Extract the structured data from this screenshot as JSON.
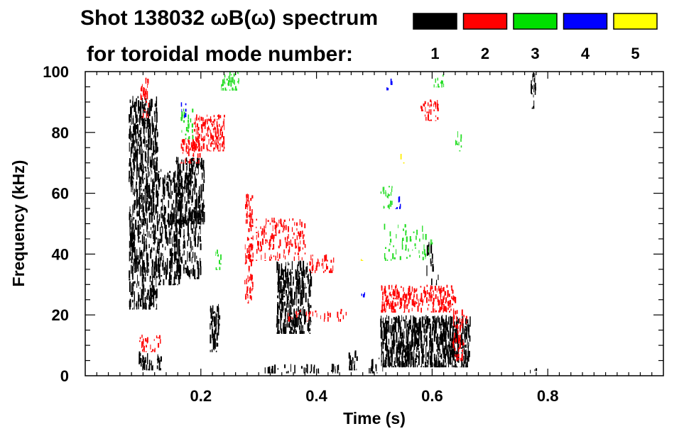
{
  "chart_data": {
    "type": "heatmap",
    "title_line1": "Shot 138032 ωB(ω) spectrum",
    "title_line2": "for toroidal mode number:",
    "xlabel": "Time (s)",
    "ylabel": "Frequency (kHz)",
    "xlim": [
      0.0,
      1.0
    ],
    "ylim": [
      0,
      100
    ],
    "x_ticks": [
      0.2,
      0.4,
      0.6,
      0.8
    ],
    "y_ticks": [
      0,
      20,
      40,
      60,
      80,
      100
    ],
    "grid": false,
    "legend_position": "top-right",
    "legend": [
      {
        "label": "1",
        "color": "#000000"
      },
      {
        "label": "2",
        "color": "#ff0000"
      },
      {
        "label": "3",
        "color": "#00e000"
      },
      {
        "label": "4",
        "color": "#0000ff"
      },
      {
        "label": "5",
        "color": "#ffff00"
      }
    ],
    "mode_colors": {
      "1": "#000000",
      "2": "#ff0000",
      "3": "#22dd22",
      "4": "#0000ff",
      "5": "#ffee00"
    },
    "regions": [
      {
        "mode": 1,
        "t0": 0.075,
        "t1": 0.125,
        "f0": 22,
        "f1": 92,
        "density": 0.5
      },
      {
        "mode": 1,
        "t0": 0.09,
        "t1": 0.13,
        "f0": 2,
        "f1": 8,
        "density": 0.4
      },
      {
        "mode": 1,
        "t0": 0.125,
        "t1": 0.165,
        "f0": 30,
        "f1": 68,
        "density": 0.35
      },
      {
        "mode": 1,
        "t0": 0.155,
        "t1": 0.205,
        "f0": 50,
        "f1": 72,
        "density": 0.6
      },
      {
        "mode": 1,
        "t0": 0.145,
        "t1": 0.2,
        "f0": 32,
        "f1": 55,
        "density": 0.3
      },
      {
        "mode": 1,
        "t0": 0.215,
        "t1": 0.232,
        "f0": 8,
        "f1": 24,
        "density": 0.5
      },
      {
        "mode": 1,
        "t0": 0.33,
        "t1": 0.39,
        "f0": 14,
        "f1": 38,
        "density": 0.55
      },
      {
        "mode": 1,
        "t0": 0.31,
        "t1": 0.44,
        "f0": 1,
        "f1": 4,
        "density": 0.25
      },
      {
        "mode": 1,
        "t0": 0.455,
        "t1": 0.47,
        "f0": 2,
        "f1": 10,
        "density": 0.4
      },
      {
        "mode": 1,
        "t0": 0.49,
        "t1": 0.52,
        "f0": 1,
        "f1": 6,
        "density": 0.3
      },
      {
        "mode": 1,
        "t0": 0.51,
        "t1": 0.665,
        "f0": 3,
        "f1": 20,
        "density": 0.65
      },
      {
        "mode": 1,
        "t0": 0.59,
        "t1": 0.61,
        "f0": 30,
        "f1": 45,
        "density": 0.15
      },
      {
        "mode": 1,
        "t0": 0.77,
        "t1": 0.778,
        "f0": 88,
        "f1": 100,
        "density": 0.5
      },
      {
        "mode": 1,
        "t0": 0.765,
        "t1": 0.78,
        "f0": 1,
        "f1": 3,
        "density": 0.3
      },
      {
        "mode": 2,
        "t0": 0.095,
        "t1": 0.11,
        "f0": 85,
        "f1": 98,
        "density": 0.4
      },
      {
        "mode": 2,
        "t0": 0.09,
        "t1": 0.13,
        "f0": 8,
        "f1": 14,
        "density": 0.3
      },
      {
        "mode": 2,
        "t0": 0.185,
        "t1": 0.24,
        "f0": 74,
        "f1": 86,
        "density": 0.6
      },
      {
        "mode": 2,
        "t0": 0.165,
        "t1": 0.2,
        "f0": 70,
        "f1": 78,
        "density": 0.4
      },
      {
        "mode": 2,
        "t0": 0.275,
        "t1": 0.29,
        "f0": 24,
        "f1": 60,
        "density": 0.45
      },
      {
        "mode": 2,
        "t0": 0.295,
        "t1": 0.38,
        "f0": 38,
        "f1": 52,
        "density": 0.3
      },
      {
        "mode": 2,
        "t0": 0.38,
        "t1": 0.43,
        "f0": 34,
        "f1": 40,
        "density": 0.35
      },
      {
        "mode": 2,
        "t0": 0.35,
        "t1": 0.46,
        "f0": 18,
        "f1": 22,
        "density": 0.2
      },
      {
        "mode": 2,
        "t0": 0.58,
        "t1": 0.61,
        "f0": 84,
        "f1": 91,
        "density": 0.45
      },
      {
        "mode": 2,
        "t0": 0.51,
        "t1": 0.64,
        "f0": 21,
        "f1": 30,
        "density": 0.55
      },
      {
        "mode": 2,
        "t0": 0.635,
        "t1": 0.66,
        "f0": 5,
        "f1": 22,
        "density": 0.35
      },
      {
        "mode": 3,
        "t0": 0.235,
        "t1": 0.265,
        "f0": 94,
        "f1": 100,
        "density": 0.6
      },
      {
        "mode": 3,
        "t0": 0.165,
        "t1": 0.185,
        "f0": 78,
        "f1": 88,
        "density": 0.35
      },
      {
        "mode": 3,
        "t0": 0.51,
        "t1": 0.53,
        "f0": 55,
        "f1": 63,
        "density": 0.35
      },
      {
        "mode": 3,
        "t0": 0.515,
        "t1": 0.6,
        "f0": 38,
        "f1": 50,
        "density": 0.15
      },
      {
        "mode": 3,
        "t0": 0.6,
        "t1": 0.62,
        "f0": 95,
        "f1": 100,
        "density": 0.3
      },
      {
        "mode": 3,
        "t0": 0.64,
        "t1": 0.65,
        "f0": 74,
        "f1": 82,
        "density": 0.3
      },
      {
        "mode": 3,
        "t0": 0.225,
        "t1": 0.235,
        "f0": 35,
        "f1": 42,
        "density": 0.4
      },
      {
        "mode": 4,
        "t0": 0.165,
        "t1": 0.175,
        "f0": 85,
        "f1": 90,
        "density": 0.4
      },
      {
        "mode": 4,
        "t0": 0.52,
        "t1": 0.53,
        "f0": 94,
        "f1": 98,
        "density": 0.4
      },
      {
        "mode": 4,
        "t0": 0.535,
        "t1": 0.545,
        "f0": 55,
        "f1": 59,
        "density": 0.4
      },
      {
        "mode": 4,
        "t0": 0.475,
        "t1": 0.485,
        "f0": 26,
        "f1": 29,
        "density": 0.4
      },
      {
        "mode": 5,
        "t0": 0.545,
        "t1": 0.55,
        "f0": 70,
        "f1": 73,
        "density": 0.5
      },
      {
        "mode": 5,
        "t0": 0.475,
        "t1": 0.48,
        "f0": 38,
        "f1": 40,
        "density": 0.5
      }
    ]
  }
}
